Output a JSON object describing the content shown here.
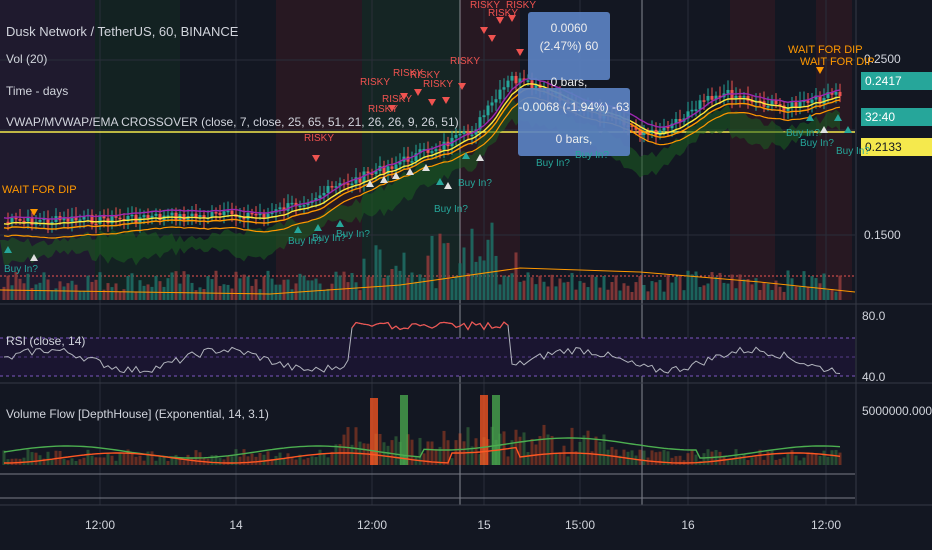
{
  "header": {
    "symbol_title": "Dusk Network / TetherUS, 60, BINANCE",
    "vol_label": "Vol (20)",
    "time_label": "Time - days",
    "indicator_label": "VWAP/MVWAP/EMA CROSSOVER (close, 7, close, 25, 65, 51, 21, 26, 26, 9, 26, 51)"
  },
  "rsi_panel": {
    "label": "RSI (close, 14)",
    "tick_top": "80.0",
    "tick_bottom": "40.0"
  },
  "volflow_panel": {
    "label": "Volume Flow [DepthHouse] (Exponential, 14, 3.1)",
    "tick": "5000000.0000"
  },
  "price_axis": {
    "ticks": [
      "0.2500",
      "0.1500"
    ],
    "badges": [
      {
        "text": "0.2417",
        "bg": "#26a69a",
        "fg": "#ffffff"
      },
      {
        "text": "32:40",
        "bg": "#26a69a",
        "fg": "#ffffff"
      },
      {
        "text": "0.2133",
        "bg": "#f5e94d",
        "fg": "#131722"
      }
    ]
  },
  "tooltips": [
    {
      "line1": "0.0060 (2.47%) 60",
      "line2": "0 bars,"
    },
    {
      "line1": "-0.0068 (-1.94%) -63",
      "line2": "0 bars,"
    }
  ],
  "signals": {
    "wait": "WAIT FOR DIP",
    "risky": "RISKY",
    "buy": "Buy In?"
  },
  "time_axis": [
    "12:00",
    "14",
    "12:00",
    "15",
    "15:00",
    "16",
    "12:00"
  ],
  "colors": {
    "bg": "#131722",
    "up": "#26a69a",
    "down": "#ef5350",
    "vol_up": "#1e6b63",
    "vol_down": "#8b3a3a",
    "vwap": "#ffeb3b",
    "ema_orange": "#ff9800",
    "ema_purple": "#9c27b0",
    "cloud": "#1b5e20",
    "rsi_line": "#b2b5be",
    "rsi_hot": "#ef5350",
    "vf_up": "#4caf50",
    "vf_down": "#ff5722"
  }
}
